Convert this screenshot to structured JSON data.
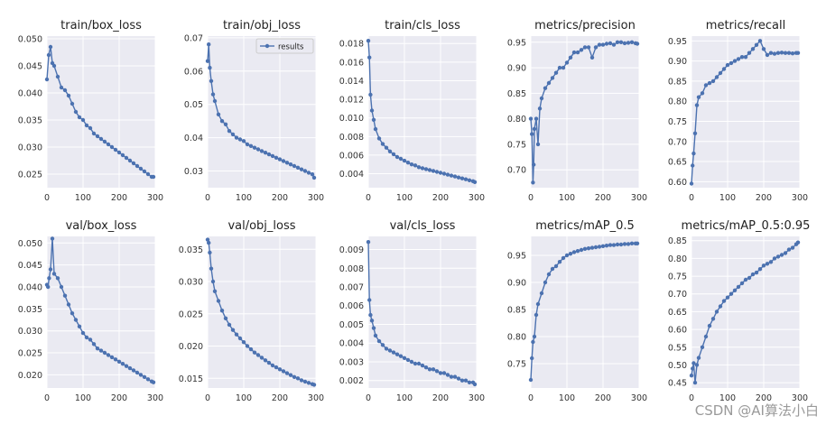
{
  "watermark": "CSDN @AI算法小白",
  "legend_label": "results",
  "colors": {
    "background": "#eaeaf2",
    "grid": "#ffffff",
    "line": "#4c72b0",
    "tick": "#333333"
  },
  "chart_data": [
    {
      "type": "line",
      "title": "train/box_loss",
      "legend": false,
      "xlim": [
        0,
        300
      ],
      "xticks": [
        0,
        100,
        200,
        300
      ],
      "ylim": [
        0.0225,
        0.0505
      ],
      "yticks": [
        0.025,
        0.03,
        0.035,
        0.04,
        0.045,
        0.05
      ],
      "ytick_labels": [
        "0.025",
        "0.030",
        "0.035",
        "0.040",
        "0.045",
        "0.050"
      ],
      "series": [
        {
          "name": "results",
          "x": [
            0,
            5,
            10,
            15,
            20,
            30,
            40,
            50,
            60,
            70,
            80,
            90,
            100,
            110,
            120,
            130,
            140,
            150,
            160,
            170,
            180,
            190,
            200,
            210,
            220,
            230,
            240,
            250,
            260,
            270,
            280,
            290,
            295
          ],
          "y": [
            0.0425,
            0.047,
            0.0485,
            0.0455,
            0.045,
            0.043,
            0.041,
            0.0405,
            0.0395,
            0.038,
            0.0365,
            0.0355,
            0.035,
            0.034,
            0.0335,
            0.0325,
            0.032,
            0.0315,
            0.031,
            0.0305,
            0.03,
            0.0295,
            0.029,
            0.0285,
            0.028,
            0.0275,
            0.027,
            0.0265,
            0.026,
            0.0255,
            0.025,
            0.0245,
            0.0245
          ]
        }
      ]
    },
    {
      "type": "line",
      "title": "train/obj_loss",
      "legend": true,
      "xlim": [
        0,
        300
      ],
      "xticks": [
        0,
        100,
        200,
        300
      ],
      "ylim": [
        0.025,
        0.0705
      ],
      "yticks": [
        0.03,
        0.04,
        0.05,
        0.06,
        0.07
      ],
      "ytick_labels": [
        "0.03",
        "0.04",
        "0.05",
        "0.06",
        "0.07"
      ],
      "series": [
        {
          "name": "results",
          "x": [
            0,
            3,
            6,
            10,
            15,
            20,
            30,
            40,
            50,
            60,
            70,
            80,
            90,
            100,
            110,
            120,
            130,
            140,
            150,
            160,
            170,
            180,
            190,
            200,
            210,
            220,
            230,
            240,
            250,
            260,
            270,
            280,
            290,
            295
          ],
          "y": [
            0.063,
            0.068,
            0.061,
            0.057,
            0.053,
            0.051,
            0.047,
            0.045,
            0.044,
            0.042,
            0.041,
            0.04,
            0.0395,
            0.039,
            0.038,
            0.0375,
            0.037,
            0.0365,
            0.036,
            0.0355,
            0.035,
            0.0345,
            0.034,
            0.0335,
            0.033,
            0.0325,
            0.032,
            0.0315,
            0.031,
            0.0305,
            0.03,
            0.0295,
            0.029,
            0.028
          ]
        }
      ]
    },
    {
      "type": "line",
      "title": "train/cls_loss",
      "legend": false,
      "xlim": [
        0,
        300
      ],
      "xticks": [
        0,
        100,
        200,
        300
      ],
      "ylim": [
        0.0025,
        0.0188
      ],
      "yticks": [
        0.004,
        0.006,
        0.008,
        0.01,
        0.012,
        0.014,
        0.016,
        0.018
      ],
      "ytick_labels": [
        "0.004",
        "0.006",
        "0.008",
        "0.010",
        "0.012",
        "0.014",
        "0.016",
        "0.018"
      ],
      "series": [
        {
          "name": "results",
          "x": [
            0,
            3,
            6,
            10,
            15,
            20,
            30,
            40,
            50,
            60,
            70,
            80,
            90,
            100,
            110,
            120,
            130,
            140,
            150,
            160,
            170,
            180,
            190,
            200,
            210,
            220,
            230,
            240,
            250,
            260,
            270,
            280,
            290,
            295
          ],
          "y": [
            0.0183,
            0.0165,
            0.0125,
            0.0108,
            0.0098,
            0.0088,
            0.0078,
            0.0072,
            0.0068,
            0.0064,
            0.0061,
            0.0058,
            0.0056,
            0.0054,
            0.0052,
            0.005,
            0.0049,
            0.0047,
            0.0046,
            0.0045,
            0.0044,
            0.0043,
            0.0042,
            0.0041,
            0.004,
            0.0039,
            0.0038,
            0.0037,
            0.0036,
            0.0035,
            0.0034,
            0.0033,
            0.0032,
            0.0031
          ]
        }
      ]
    },
    {
      "type": "line",
      "title": "metrics/precision",
      "legend": false,
      "xlim": [
        0,
        300
      ],
      "xticks": [
        0,
        100,
        200,
        300
      ],
      "ylim": [
        0.665,
        0.962
      ],
      "yticks": [
        0.7,
        0.75,
        0.8,
        0.85,
        0.9,
        0.95
      ],
      "ytick_labels": [
        "0.70",
        "0.75",
        "0.80",
        "0.85",
        "0.90",
        "0.95"
      ],
      "series": [
        {
          "name": "results",
          "x": [
            0,
            3,
            6,
            8,
            10,
            15,
            20,
            25,
            30,
            40,
            50,
            60,
            70,
            80,
            90,
            100,
            110,
            120,
            130,
            140,
            150,
            160,
            170,
            180,
            190,
            200,
            210,
            220,
            230,
            240,
            250,
            260,
            270,
            280,
            290,
            295
          ],
          "y": [
            0.8,
            0.77,
            0.675,
            0.71,
            0.78,
            0.8,
            0.75,
            0.82,
            0.84,
            0.86,
            0.87,
            0.88,
            0.89,
            0.9,
            0.9,
            0.91,
            0.92,
            0.93,
            0.93,
            0.935,
            0.94,
            0.94,
            0.92,
            0.94,
            0.945,
            0.945,
            0.947,
            0.948,
            0.945,
            0.95,
            0.95,
            0.948,
            0.949,
            0.95,
            0.948,
            0.947
          ]
        }
      ]
    },
    {
      "type": "line",
      "title": "metrics/recall",
      "legend": false,
      "xlim": [
        0,
        300
      ],
      "xticks": [
        0,
        100,
        200,
        300
      ],
      "ylim": [
        0.585,
        0.962
      ],
      "yticks": [
        0.6,
        0.65,
        0.7,
        0.75,
        0.8,
        0.85,
        0.9,
        0.95
      ],
      "ytick_labels": [
        "0.60",
        "0.65",
        "0.70",
        "0.75",
        "0.80",
        "0.85",
        "0.90",
        "0.95"
      ],
      "series": [
        {
          "name": "results",
          "x": [
            0,
            3,
            6,
            10,
            15,
            20,
            30,
            40,
            50,
            60,
            70,
            80,
            90,
            100,
            110,
            120,
            130,
            140,
            150,
            160,
            170,
            180,
            190,
            200,
            210,
            220,
            230,
            240,
            250,
            260,
            270,
            280,
            290,
            295
          ],
          "y": [
            0.595,
            0.64,
            0.67,
            0.72,
            0.79,
            0.81,
            0.82,
            0.84,
            0.845,
            0.85,
            0.86,
            0.87,
            0.88,
            0.89,
            0.895,
            0.9,
            0.905,
            0.91,
            0.91,
            0.92,
            0.93,
            0.94,
            0.95,
            0.93,
            0.915,
            0.92,
            0.918,
            0.92,
            0.921,
            0.92,
            0.92,
            0.919,
            0.92,
            0.92
          ]
        }
      ]
    },
    {
      "type": "line",
      "title": "val/box_loss",
      "legend": false,
      "xlim": [
        0,
        300
      ],
      "xticks": [
        0,
        100,
        200,
        300
      ],
      "ylim": [
        0.017,
        0.0515
      ],
      "yticks": [
        0.02,
        0.025,
        0.03,
        0.035,
        0.04,
        0.045,
        0.05
      ],
      "ytick_labels": [
        "0.020",
        "0.025",
        "0.030",
        "0.035",
        "0.040",
        "0.045",
        "0.050"
      ],
      "series": [
        {
          "name": "results",
          "x": [
            0,
            3,
            6,
            10,
            15,
            20,
            30,
            40,
            50,
            60,
            70,
            80,
            90,
            100,
            110,
            120,
            130,
            140,
            150,
            160,
            170,
            180,
            190,
            200,
            210,
            220,
            230,
            240,
            250,
            260,
            270,
            280,
            290,
            295
          ],
          "y": [
            0.0405,
            0.04,
            0.042,
            0.044,
            0.051,
            0.043,
            0.042,
            0.04,
            0.038,
            0.036,
            0.034,
            0.0325,
            0.031,
            0.0295,
            0.0285,
            0.028,
            0.027,
            0.026,
            0.0255,
            0.025,
            0.0245,
            0.024,
            0.0235,
            0.023,
            0.0225,
            0.022,
            0.0215,
            0.021,
            0.0205,
            0.02,
            0.0195,
            0.019,
            0.0185,
            0.0183
          ]
        }
      ]
    },
    {
      "type": "line",
      "title": "val/obj_loss",
      "legend": false,
      "xlim": [
        0,
        300
      ],
      "xticks": [
        0,
        100,
        200,
        300
      ],
      "ylim": [
        0.0135,
        0.037
      ],
      "yticks": [
        0.015,
        0.02,
        0.025,
        0.03,
        0.035
      ],
      "ytick_labels": [
        "0.015",
        "0.020",
        "0.025",
        "0.030",
        "0.035"
      ],
      "series": [
        {
          "name": "results",
          "x": [
            0,
            3,
            6,
            10,
            15,
            20,
            30,
            40,
            50,
            60,
            70,
            80,
            90,
            100,
            110,
            120,
            130,
            140,
            150,
            160,
            170,
            180,
            190,
            200,
            210,
            220,
            230,
            240,
            250,
            260,
            270,
            280,
            290,
            295
          ],
          "y": [
            0.0365,
            0.036,
            0.0345,
            0.032,
            0.03,
            0.0285,
            0.027,
            0.0255,
            0.0243,
            0.0233,
            0.0225,
            0.0218,
            0.0212,
            0.0206,
            0.02,
            0.0195,
            0.019,
            0.0186,
            0.0182,
            0.0178,
            0.0174,
            0.017,
            0.0167,
            0.0164,
            0.0161,
            0.0158,
            0.0155,
            0.0152,
            0.015,
            0.0147,
            0.0145,
            0.0143,
            0.0141,
            0.014
          ]
        }
      ]
    },
    {
      "type": "line",
      "title": "val/cls_loss",
      "legend": false,
      "xlim": [
        0,
        300
      ],
      "xticks": [
        0,
        100,
        200,
        300
      ],
      "ylim": [
        0.0016,
        0.0097
      ],
      "yticks": [
        0.002,
        0.003,
        0.004,
        0.005,
        0.006,
        0.007,
        0.008,
        0.009
      ],
      "ytick_labels": [
        "0.002",
        "0.003",
        "0.004",
        "0.005",
        "0.006",
        "0.007",
        "0.008",
        "0.009"
      ],
      "series": [
        {
          "name": "results",
          "x": [
            0,
            3,
            6,
            10,
            15,
            20,
            30,
            40,
            50,
            60,
            70,
            80,
            90,
            100,
            110,
            120,
            130,
            140,
            150,
            160,
            170,
            180,
            190,
            200,
            210,
            220,
            230,
            240,
            250,
            260,
            270,
            280,
            290,
            295
          ],
          "y": [
            0.0094,
            0.0063,
            0.0055,
            0.0052,
            0.0048,
            0.0044,
            0.0041,
            0.0039,
            0.0037,
            0.0036,
            0.0035,
            0.0034,
            0.0033,
            0.0032,
            0.0031,
            0.003,
            0.0029,
            0.0029,
            0.0028,
            0.0027,
            0.0026,
            0.0026,
            0.0025,
            0.0024,
            0.0024,
            0.0023,
            0.0022,
            0.0022,
            0.0021,
            0.002,
            0.002,
            0.0019,
            0.0019,
            0.0018
          ]
        }
      ]
    },
    {
      "type": "line",
      "title": "metrics/mAP_0.5",
      "legend": false,
      "xlim": [
        0,
        300
      ],
      "xticks": [
        0,
        100,
        200,
        300
      ],
      "ylim": [
        0.705,
        0.985
      ],
      "yticks": [
        0.75,
        0.8,
        0.85,
        0.9,
        0.95
      ],
      "ytick_labels": [
        "0.75",
        "0.80",
        "0.85",
        "0.90",
        "0.95"
      ],
      "series": [
        {
          "name": "results",
          "x": [
            0,
            3,
            6,
            10,
            15,
            20,
            30,
            40,
            50,
            60,
            70,
            80,
            90,
            100,
            110,
            120,
            130,
            140,
            150,
            160,
            170,
            180,
            190,
            200,
            210,
            220,
            230,
            240,
            250,
            260,
            270,
            280,
            290,
            295
          ],
          "y": [
            0.72,
            0.76,
            0.79,
            0.8,
            0.84,
            0.86,
            0.88,
            0.9,
            0.915,
            0.925,
            0.93,
            0.938,
            0.945,
            0.95,
            0.953,
            0.956,
            0.958,
            0.96,
            0.962,
            0.963,
            0.964,
            0.965,
            0.966,
            0.967,
            0.968,
            0.969,
            0.969,
            0.97,
            0.97,
            0.971,
            0.971,
            0.972,
            0.972,
            0.972
          ]
        }
      ]
    },
    {
      "type": "line",
      "title": "metrics/mAP_0.5:0.95",
      "legend": false,
      "xlim": [
        0,
        300
      ],
      "xticks": [
        0,
        100,
        200,
        300
      ],
      "ylim": [
        0.435,
        0.862
      ],
      "yticks": [
        0.45,
        0.5,
        0.55,
        0.6,
        0.65,
        0.7,
        0.75,
        0.8,
        0.85
      ],
      "ytick_labels": [
        "0.45",
        "0.50",
        "0.55",
        "0.60",
        "0.65",
        "0.70",
        "0.75",
        "0.80",
        "0.85"
      ],
      "series": [
        {
          "name": "results",
          "x": [
            0,
            3,
            6,
            10,
            15,
            20,
            30,
            40,
            50,
            60,
            70,
            80,
            90,
            100,
            110,
            120,
            130,
            140,
            150,
            160,
            170,
            180,
            190,
            200,
            210,
            220,
            230,
            240,
            250,
            260,
            270,
            280,
            290,
            295
          ],
          "y": [
            0.47,
            0.49,
            0.505,
            0.45,
            0.5,
            0.52,
            0.55,
            0.58,
            0.61,
            0.63,
            0.65,
            0.665,
            0.68,
            0.69,
            0.7,
            0.71,
            0.72,
            0.73,
            0.74,
            0.745,
            0.755,
            0.76,
            0.77,
            0.78,
            0.785,
            0.79,
            0.8,
            0.805,
            0.81,
            0.815,
            0.825,
            0.83,
            0.84,
            0.845
          ]
        }
      ]
    }
  ]
}
